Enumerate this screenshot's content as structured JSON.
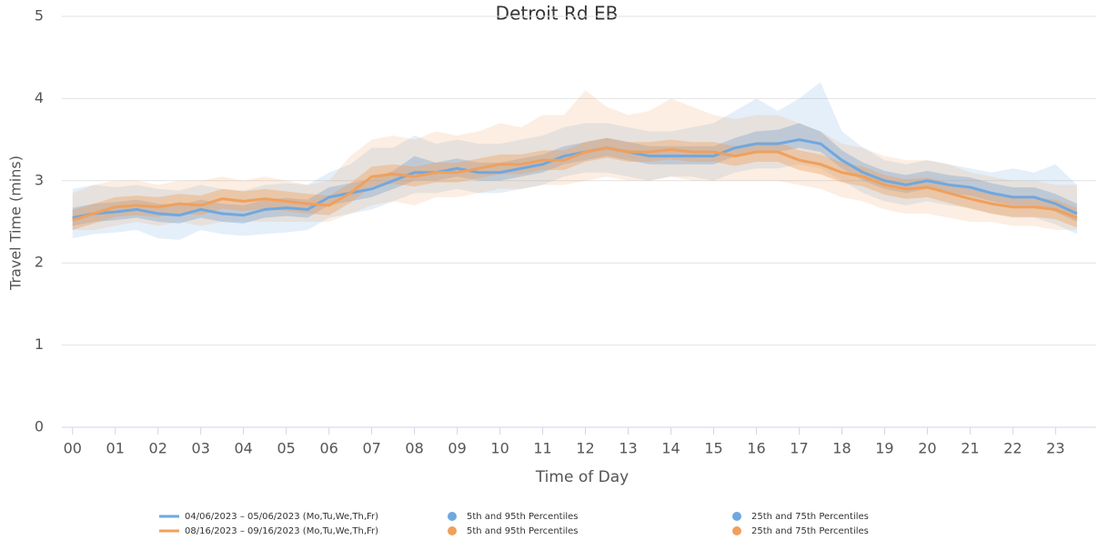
{
  "chart_data": {
    "type": "line",
    "title": "Detroit Rd EB",
    "x_label": "Time of Day",
    "y_label": "Travel Time (mins)",
    "x": [
      0,
      0.5,
      1,
      1.5,
      2,
      2.5,
      3,
      3.5,
      4,
      4.5,
      5,
      5.5,
      6,
      6.5,
      7,
      7.5,
      8,
      8.5,
      9,
      9.5,
      10,
      10.5,
      11,
      11.5,
      12,
      12.5,
      13,
      13.5,
      14,
      14.5,
      15,
      15.5,
      16,
      16.5,
      17,
      17.5,
      18,
      18.5,
      19,
      19.5,
      20,
      20.5,
      21,
      21.5,
      22,
      22.5,
      23,
      23.5
    ],
    "xlim": [
      -0.25,
      23.95
    ],
    "xticks": [
      {
        "value": 0,
        "label": "00"
      },
      {
        "value": 1,
        "label": "01"
      },
      {
        "value": 2,
        "label": "02"
      },
      {
        "value": 3,
        "label": "03"
      },
      {
        "value": 4,
        "label": "04"
      },
      {
        "value": 5,
        "label": "05"
      },
      {
        "value": 6,
        "label": "06"
      },
      {
        "value": 7,
        "label": "07"
      },
      {
        "value": 8,
        "label": "08"
      },
      {
        "value": 9,
        "label": "09"
      },
      {
        "value": 10,
        "label": "10"
      },
      {
        "value": 11,
        "label": "11"
      },
      {
        "value": 12,
        "label": "12"
      },
      {
        "value": 13,
        "label": "13"
      },
      {
        "value": 14,
        "label": "14"
      },
      {
        "value": 15,
        "label": "15"
      },
      {
        "value": 16,
        "label": "16"
      },
      {
        "value": 17,
        "label": "17"
      },
      {
        "value": 18,
        "label": "18"
      },
      {
        "value": 19,
        "label": "19"
      },
      {
        "value": 20,
        "label": "20"
      },
      {
        "value": 21,
        "label": "21"
      },
      {
        "value": 22,
        "label": "22"
      },
      {
        "value": 23,
        "label": "23"
      }
    ],
    "ylim": [
      0,
      5
    ],
    "yticks": [
      0,
      1,
      2,
      3,
      4,
      5
    ],
    "grid": true,
    "legend": "bottom",
    "series": [
      {
        "name": "04/06/2023 – 05/06/2023 (Mo,Tu,We,Th,Fr)",
        "color": "#6fa8e0",
        "values": [
          2.55,
          2.6,
          2.62,
          2.65,
          2.6,
          2.58,
          2.65,
          2.6,
          2.58,
          2.65,
          2.67,
          2.65,
          2.8,
          2.85,
          2.9,
          3.0,
          3.1,
          3.1,
          3.15,
          3.1,
          3.1,
          3.15,
          3.2,
          3.3,
          3.35,
          3.4,
          3.35,
          3.3,
          3.3,
          3.3,
          3.3,
          3.4,
          3.45,
          3.45,
          3.5,
          3.45,
          3.25,
          3.1,
          3.0,
          2.95,
          3.0,
          2.95,
          2.92,
          2.85,
          2.8,
          2.8,
          2.72,
          2.6
        ],
        "bands": [
          {
            "name": "5th and 95th Percentiles",
            "lower": [
              2.3,
              2.35,
              2.37,
              2.4,
              2.3,
              2.28,
              2.4,
              2.35,
              2.33,
              2.35,
              2.37,
              2.4,
              2.55,
              2.6,
              2.65,
              2.75,
              2.85,
              2.85,
              2.9,
              2.85,
              2.85,
              2.9,
              2.95,
              3.05,
              3.1,
              3.1,
              3.05,
              3.0,
              3.05,
              3.05,
              3.0,
              3.1,
              3.15,
              3.15,
              3.2,
              3.15,
              3.0,
              2.85,
              2.75,
              2.7,
              2.75,
              2.7,
              2.67,
              2.6,
              2.55,
              2.55,
              2.47,
              2.35
            ],
            "upper": [
              2.9,
              2.95,
              2.92,
              2.95,
              2.9,
              2.88,
              2.95,
              2.9,
              2.88,
              2.95,
              2.97,
              2.95,
              3.1,
              3.2,
              3.4,
              3.4,
              3.55,
              3.45,
              3.5,
              3.45,
              3.45,
              3.5,
              3.55,
              3.65,
              3.7,
              3.7,
              3.65,
              3.6,
              3.6,
              3.65,
              3.7,
              3.85,
              4.0,
              3.85,
              4.0,
              4.2,
              3.6,
              3.4,
              3.25,
              3.2,
              3.25,
              3.2,
              3.15,
              3.1,
              3.15,
              3.1,
              3.2,
              2.95
            ]
          },
          {
            "name": "25th and 75th Percentiles",
            "lower": [
              2.45,
              2.5,
              2.52,
              2.55,
              2.5,
              2.48,
              2.55,
              2.5,
              2.48,
              2.55,
              2.57,
              2.55,
              2.7,
              2.75,
              2.8,
              2.9,
              3.0,
              3.0,
              3.05,
              3.0,
              3.0,
              3.05,
              3.1,
              3.2,
              3.25,
              3.3,
              3.25,
              3.2,
              3.2,
              3.2,
              3.2,
              3.3,
              3.35,
              3.35,
              3.4,
              3.35,
              3.15,
              3.0,
              2.9,
              2.85,
              2.9,
              2.85,
              2.82,
              2.75,
              2.7,
              2.7,
              2.62,
              2.5
            ],
            "upper": [
              2.67,
              2.72,
              2.74,
              2.77,
              2.72,
              2.7,
              2.77,
              2.72,
              2.7,
              2.77,
              2.79,
              2.77,
              2.92,
              2.97,
              3.02,
              3.12,
              3.3,
              3.22,
              3.27,
              3.22,
              3.22,
              3.27,
              3.32,
              3.42,
              3.47,
              3.52,
              3.47,
              3.42,
              3.42,
              3.42,
              3.42,
              3.52,
              3.6,
              3.62,
              3.7,
              3.6,
              3.37,
              3.22,
              3.12,
              3.07,
              3.12,
              3.07,
              3.04,
              2.97,
              2.92,
              2.92,
              2.84,
              2.72
            ]
          }
        ]
      },
      {
        "name": "08/16/2023 – 09/16/2023 (Mo,Tu,We,Th,Fr)",
        "color": "#f0a05c",
        "values": [
          2.52,
          2.6,
          2.68,
          2.7,
          2.68,
          2.72,
          2.7,
          2.78,
          2.75,
          2.78,
          2.75,
          2.72,
          2.7,
          2.85,
          3.05,
          3.08,
          3.05,
          3.1,
          3.1,
          3.15,
          3.2,
          3.2,
          3.25,
          3.25,
          3.35,
          3.4,
          3.35,
          3.35,
          3.38,
          3.35,
          3.35,
          3.3,
          3.35,
          3.35,
          3.25,
          3.2,
          3.1,
          3.05,
          2.95,
          2.9,
          2.92,
          2.85,
          2.78,
          2.72,
          2.68,
          2.68,
          2.65,
          2.55
        ],
        "bands": [
          {
            "name": "5th and 95th Percentiles",
            "lower": [
              2.4,
              2.4,
              2.45,
              2.5,
              2.45,
              2.5,
              2.45,
              2.5,
              2.5,
              2.5,
              2.5,
              2.5,
              2.5,
              2.6,
              2.7,
              2.75,
              2.7,
              2.8,
              2.8,
              2.85,
              2.9,
              2.9,
              2.95,
              2.95,
              3.0,
              3.05,
              3.0,
              3.0,
              3.05,
              3.0,
              3.0,
              3.0,
              3.0,
              3.0,
              2.95,
              2.9,
              2.8,
              2.75,
              2.65,
              2.6,
              2.6,
              2.55,
              2.5,
              2.5,
              2.45,
              2.45,
              2.4,
              2.4
            ],
            "upper": [
              2.85,
              2.95,
              3.0,
              3.0,
              2.95,
              3.0,
              3.0,
              3.05,
              3.0,
              3.05,
              3.0,
              2.95,
              3.0,
              3.3,
              3.5,
              3.55,
              3.5,
              3.6,
              3.55,
              3.6,
              3.7,
              3.65,
              3.8,
              3.8,
              4.1,
              3.9,
              3.8,
              3.85,
              4.0,
              3.9,
              3.8,
              3.75,
              3.8,
              3.8,
              3.7,
              3.6,
              3.45,
              3.4,
              3.3,
              3.25,
              3.25,
              3.2,
              3.1,
              3.05,
              3.0,
              3.0,
              2.95,
              2.95
            ]
          },
          {
            "name": "25th and 75th Percentiles",
            "lower": [
              2.4,
              2.48,
              2.56,
              2.58,
              2.56,
              2.6,
              2.58,
              2.66,
              2.63,
              2.66,
              2.63,
              2.6,
              2.58,
              2.73,
              2.93,
              2.96,
              2.93,
              2.98,
              2.98,
              3.03,
              3.08,
              3.08,
              3.13,
              3.13,
              3.23,
              3.28,
              3.23,
              3.23,
              3.26,
              3.23,
              3.23,
              3.18,
              3.23,
              3.23,
              3.13,
              3.08,
              2.98,
              2.93,
              2.83,
              2.78,
              2.8,
              2.73,
              2.66,
              2.6,
              2.56,
              2.56,
              2.53,
              2.43
            ],
            "upper": [
              2.64,
              2.72,
              2.8,
              2.82,
              2.8,
              2.84,
              2.82,
              2.9,
              2.87,
              2.9,
              2.87,
              2.84,
              2.82,
              2.97,
              3.17,
              3.2,
              3.17,
              3.22,
              3.22,
              3.27,
              3.32,
              3.32,
              3.37,
              3.37,
              3.47,
              3.52,
              3.47,
              3.47,
              3.5,
              3.47,
              3.47,
              3.42,
              3.47,
              3.47,
              3.37,
              3.32,
              3.22,
              3.17,
              3.07,
              3.02,
              3.04,
              2.97,
              2.9,
              2.84,
              2.8,
              2.8,
              2.77,
              2.67
            ]
          }
        ]
      }
    ]
  }
}
